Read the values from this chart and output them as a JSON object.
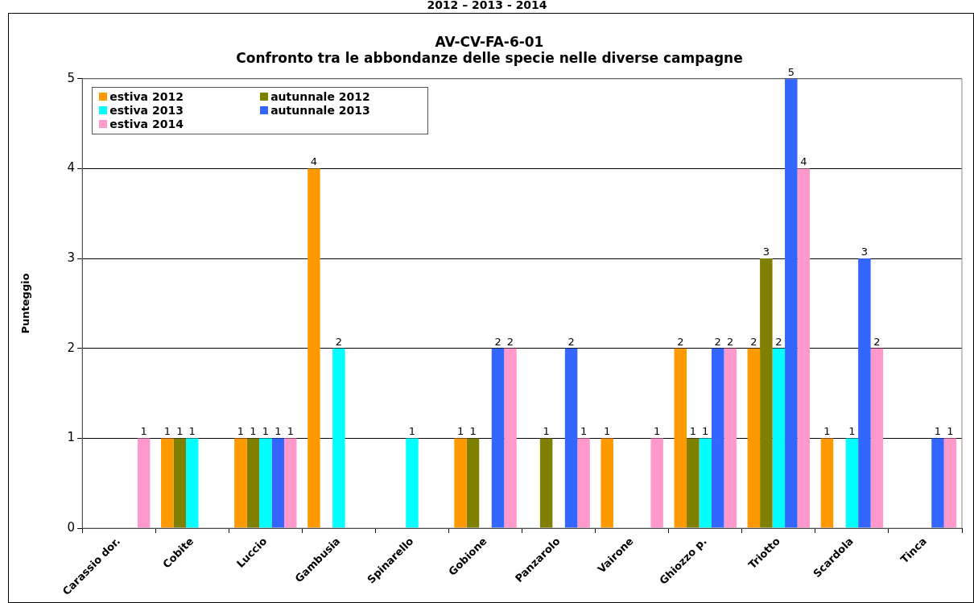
{
  "chart_data": {
    "type": "bar",
    "title": "AV-CV-FA-6-01\nConfronto tra le abbondanze delle specie nelle diverse campagne",
    "annotations": [
      "2012 – 2013 - 2014"
    ],
    "ylabel": "Punteggio",
    "categories": [
      "Carassio dor.",
      "Cobite",
      "Luccio",
      "Gambusia",
      "Spinarello",
      "Gobione",
      "Panzarolo",
      "Vairone",
      "Ghiozzo p.",
      "Triotto",
      "Scardola",
      "Tinca"
    ],
    "series": [
      {
        "name": "estiva 2012",
        "color": "#ff9900",
        "values": [
          null,
          1,
          1,
          4,
          null,
          1,
          null,
          1,
          2,
          2,
          1,
          null
        ]
      },
      {
        "name": "autunnale 2012",
        "color": "#808000",
        "values": [
          null,
          1,
          1,
          null,
          null,
          1,
          1,
          null,
          1,
          3,
          null,
          null
        ]
      },
      {
        "name": "estiva 2013",
        "color": "#00ffff",
        "values": [
          null,
          1,
          1,
          2,
          1,
          null,
          null,
          null,
          1,
          2,
          1,
          null
        ]
      },
      {
        "name": "autunnale 2013",
        "color": "#3366ff",
        "values": [
          null,
          null,
          1,
          null,
          null,
          2,
          2,
          null,
          2,
          5,
          3,
          1
        ]
      },
      {
        "name": "estiva 2014",
        "color": "#ff99cc",
        "values": [
          1,
          null,
          1,
          null,
          null,
          2,
          1,
          1,
          2,
          4,
          2,
          1
        ]
      }
    ],
    "ylim": [
      0,
      5
    ],
    "yticks": [
      0,
      1,
      2,
      3,
      4,
      5
    ],
    "grid": "y",
    "legend": "top left",
    "data_labels": true
  }
}
